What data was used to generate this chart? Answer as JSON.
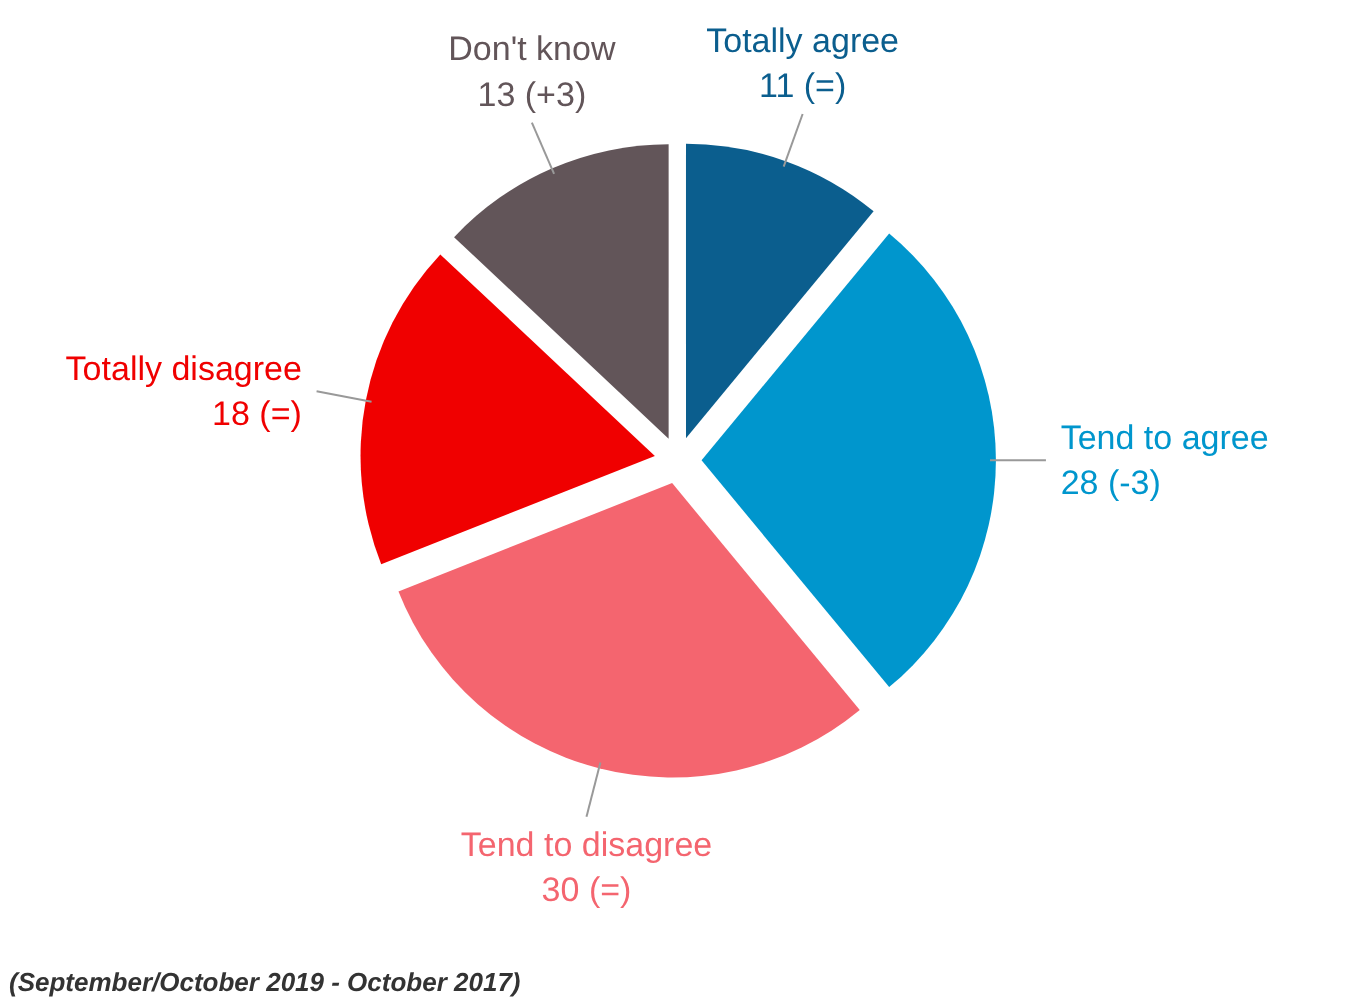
{
  "chart_data": {
    "type": "pie",
    "categories": [
      "Totally agree",
      "Tend to agree",
      "Tend to disagree",
      "Totally disagree",
      "Don't know"
    ],
    "values": [
      11,
      28,
      30,
      18,
      13
    ],
    "value_labels": [
      "11 (=)",
      "28 (-3)",
      "30 (=)",
      "18 (=)",
      "13 (+3)"
    ],
    "colors": [
      "#0b5e8e",
      "#0096cd",
      "#f4656f",
      "#f00000",
      "#625559"
    ],
    "annotations": [
      "(September/October 2019 - October 2017)"
    ]
  }
}
